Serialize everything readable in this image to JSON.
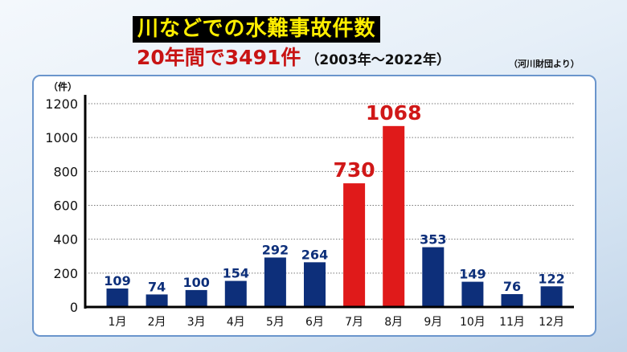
{
  "header": {
    "title": "川などでの水難事故件数",
    "subtitle": "20年間で3491件",
    "period": "（2003年〜2022年）",
    "source": "（河川財団より）"
  },
  "chart_data": {
    "type": "bar",
    "title": "川などでの水難事故件数",
    "ylabel": "（件）",
    "ylim": [
      0,
      1200
    ],
    "yticks": [
      0,
      200,
      400,
      600,
      800,
      1000,
      1200
    ],
    "grid": true,
    "categories": [
      "1月",
      "2月",
      "3月",
      "4月",
      "5月",
      "6月",
      "7月",
      "8月",
      "9月",
      "10月",
      "11月",
      "12月"
    ],
    "values": [
      109,
      74,
      100,
      154,
      292,
      264,
      730,
      1068,
      353,
      149,
      76,
      122
    ],
    "highlight": [
      "7月",
      "8月"
    ],
    "colors": {
      "normal": "#0d2f7a",
      "highlight": "#e01a1a",
      "normal_label": "#0d2f7a",
      "highlight_label": "#d01818"
    }
  }
}
